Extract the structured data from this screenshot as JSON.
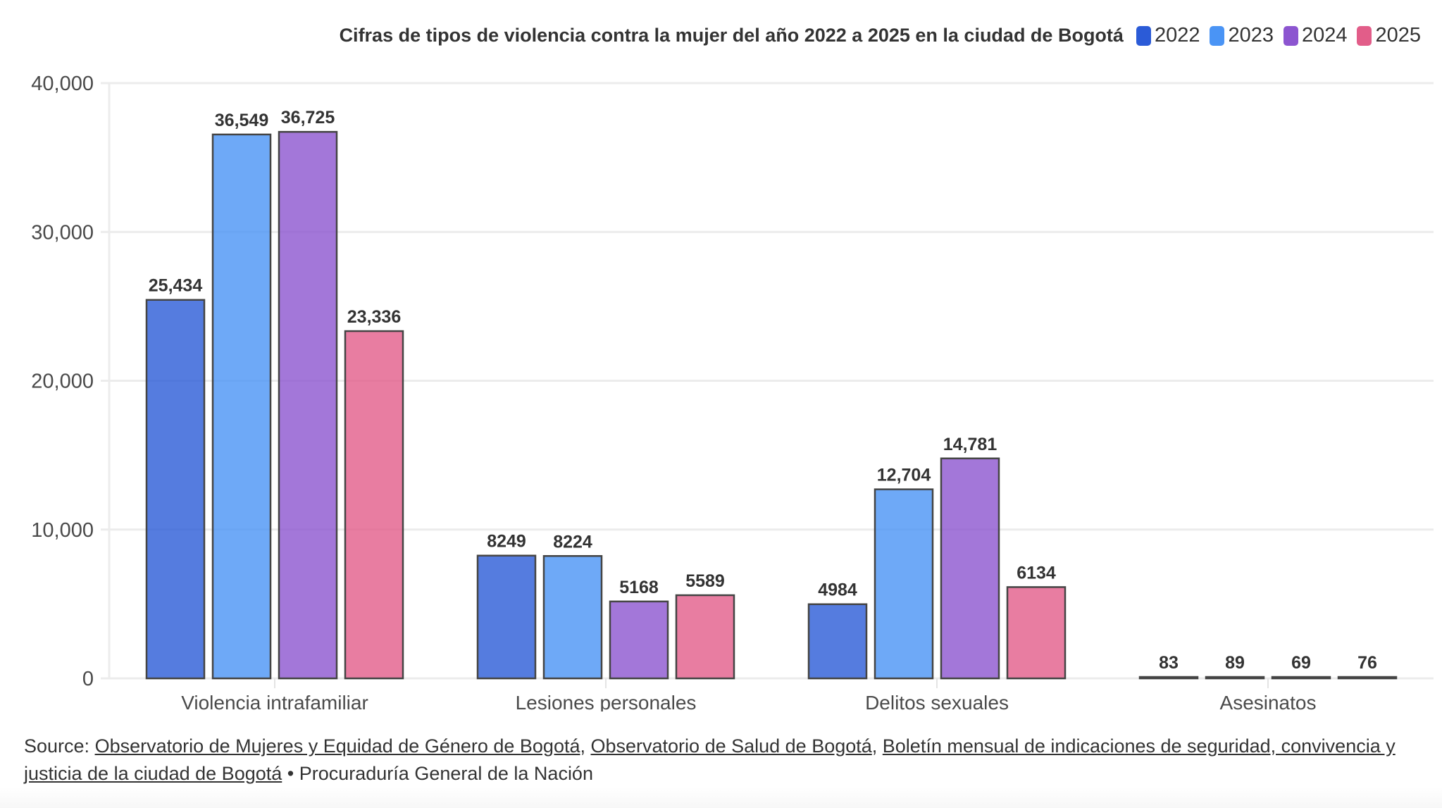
{
  "chart_data": {
    "type": "bar",
    "title": "Cifras de tipos de violencia contra la mujer del año 2022 a 2025 en la ciudad de Bogotá",
    "xlabel": "",
    "ylabel": "",
    "ylim": [
      0,
      40000
    ],
    "yticks": [
      0,
      10000,
      20000,
      30000,
      40000
    ],
    "ytick_labels": [
      "0",
      "10,000",
      "20,000",
      "30,000",
      "40,000"
    ],
    "grid": true,
    "legend_position": "top-right",
    "categories": [
      "Violencia intrafamiliar",
      "Lesiones personales",
      "Delitos sexuales",
      "Asesinatos"
    ],
    "series": [
      {
        "name": "2022",
        "color": "#2b5bd7",
        "values": [
          25434,
          8249,
          4984,
          83
        ],
        "labels": [
          "25,434",
          "8249",
          "4984",
          "83"
        ]
      },
      {
        "name": "2023",
        "color": "#4a94f5",
        "values": [
          36549,
          8224,
          12704,
          89
        ],
        "labels": [
          "36,549",
          "8224",
          "12,704",
          "89"
        ]
      },
      {
        "name": "2024",
        "color": "#8c55d0",
        "values": [
          36725,
          5168,
          14781,
          69
        ],
        "labels": [
          "36,725",
          "5168",
          "14,781",
          "69"
        ]
      },
      {
        "name": "2025",
        "color": "#e25d89",
        "values": [
          23336,
          5589,
          6134,
          76
        ],
        "labels": [
          "23,336",
          "5589",
          "6134",
          "76"
        ]
      }
    ]
  },
  "legend": [
    {
      "label": "2022",
      "color": "#2b5bd7"
    },
    {
      "label": "2023",
      "color": "#4a94f5"
    },
    {
      "label": "2024",
      "color": "#8c55d0"
    },
    {
      "label": "2025",
      "color": "#e25d89"
    }
  ],
  "source": {
    "prefix": "Source: ",
    "links": [
      "Observatorio de Mujeres y Equidad de Género de Bogotá",
      "Observatorio de Salud de Bogotá",
      "Boletín mensual de indicaciones de seguridad, convivencia y justicia de la ciudad de Bogotá"
    ],
    "separator": ", ",
    "bullet": " • ",
    "suffix": "Procuraduría General de la Nación"
  }
}
